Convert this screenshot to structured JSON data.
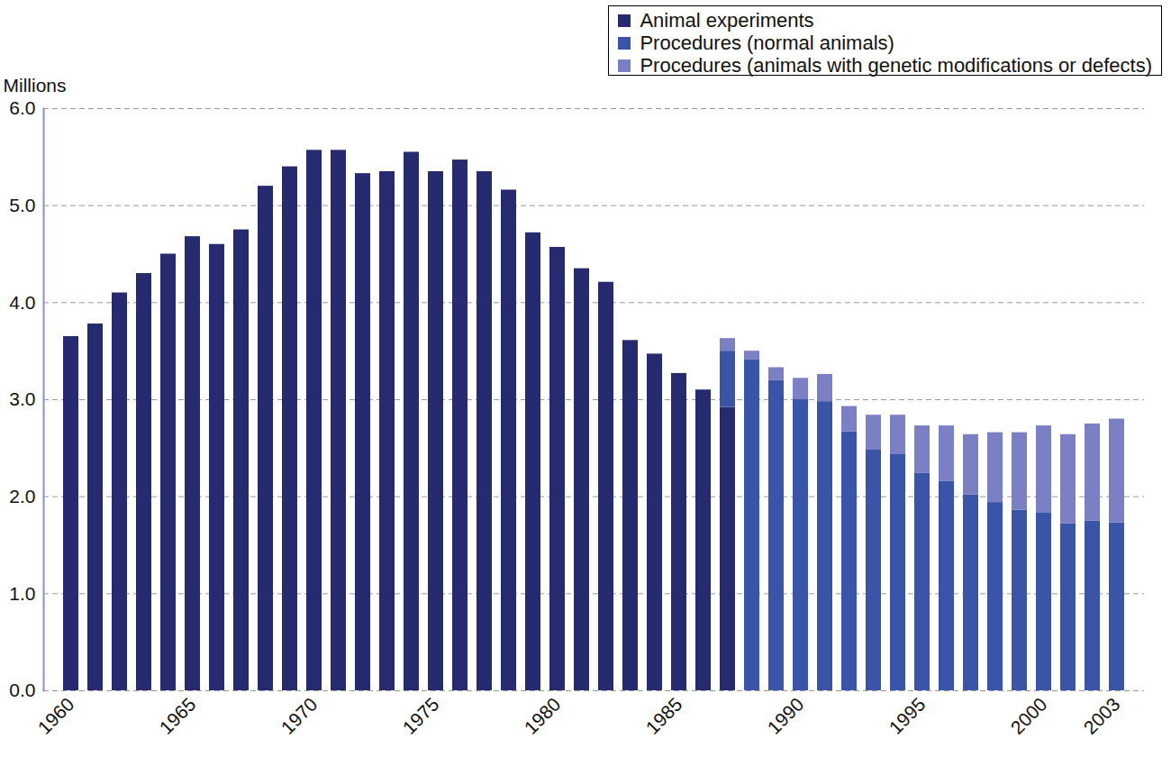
{
  "chart_data": {
    "type": "bar",
    "stacked": true,
    "grid": true,
    "legend": "top-right",
    "y_label": "Millions",
    "categories": [
      "1960",
      null,
      null,
      null,
      null,
      "1965",
      null,
      null,
      null,
      null,
      "1970",
      null,
      null,
      null,
      null,
      "1975",
      null,
      null,
      null,
      null,
      "1980",
      null,
      null,
      null,
      null,
      "1985",
      null,
      null,
      null,
      null,
      "1990",
      null,
      null,
      null,
      null,
      "1995",
      null,
      null,
      null,
      null,
      "2000",
      null,
      null,
      "2003"
    ],
    "series": [
      {
        "name": "Animal experiments",
        "color": "#262a6e",
        "values": [
          3.65,
          3.78,
          4.1,
          4.3,
          4.5,
          4.68,
          4.6,
          4.75,
          5.2,
          5.4,
          5.57,
          5.57,
          5.33,
          5.35,
          5.55,
          5.35,
          5.47,
          5.35,
          5.16,
          4.72,
          4.57,
          4.35,
          4.21,
          3.61,
          3.47,
          3.27,
          3.1,
          2.92,
          null,
          null,
          null,
          null,
          null,
          null,
          null,
          null,
          null,
          null,
          null,
          null,
          null,
          null,
          null,
          null
        ]
      },
      {
        "name": "Procedures (normal animals)",
        "color": "#3a55a8",
        "values": [
          null,
          null,
          null,
          null,
          null,
          null,
          null,
          null,
          null,
          null,
          null,
          null,
          null,
          null,
          null,
          null,
          null,
          null,
          null,
          null,
          null,
          null,
          null,
          null,
          null,
          null,
          null,
          0.58,
          3.41,
          3.2,
          3.0,
          2.98,
          2.67,
          2.48,
          2.44,
          2.24,
          2.16,
          2.02,
          1.94,
          1.86,
          1.83,
          1.72,
          1.75,
          1.73
        ]
      },
      {
        "name": "Procedures (animals with genetic modifications or defects)",
        "color": "#7b7fc4",
        "values": [
          null,
          null,
          null,
          null,
          null,
          null,
          null,
          null,
          null,
          null,
          null,
          null,
          null,
          null,
          null,
          null,
          null,
          null,
          null,
          null,
          null,
          null,
          null,
          null,
          null,
          null,
          null,
          0.13,
          0.09,
          0.13,
          0.22,
          0.28,
          0.26,
          0.36,
          0.4,
          0.49,
          0.57,
          0.62,
          0.72,
          0.8,
          0.9,
          0.92,
          1.0,
          1.07
        ]
      }
    ],
    "ylim": [
      0,
      6
    ],
    "yticks": [
      0,
      1,
      2,
      3,
      4,
      5,
      6
    ]
  }
}
